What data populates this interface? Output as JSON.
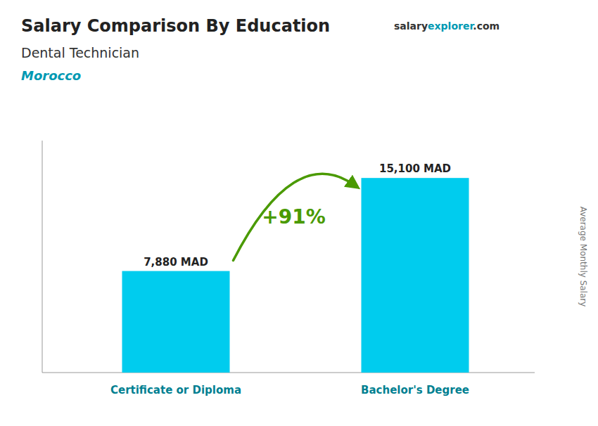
{
  "chart_data": {
    "type": "bar",
    "title": "Salary Comparison By Education",
    "subtitle": [
      "Dental Technician",
      "Morocco"
    ],
    "annotations": [
      "+91%",
      "salary",
      "explorer",
      ".com"
    ],
    "y_label": "Average Monthly Salary",
    "categories": [
      "Certificate or Diploma",
      "Bachelor's Degree"
    ],
    "values": [
      7880,
      15100
    ],
    "value_labels": [
      "7,880 MAD",
      "15,100 MAD"
    ],
    "data_labels": true,
    "color": "#00ccee",
    "ylim": [
      0,
      18000
    ],
    "tick_labels": false,
    "grid": false
  }
}
